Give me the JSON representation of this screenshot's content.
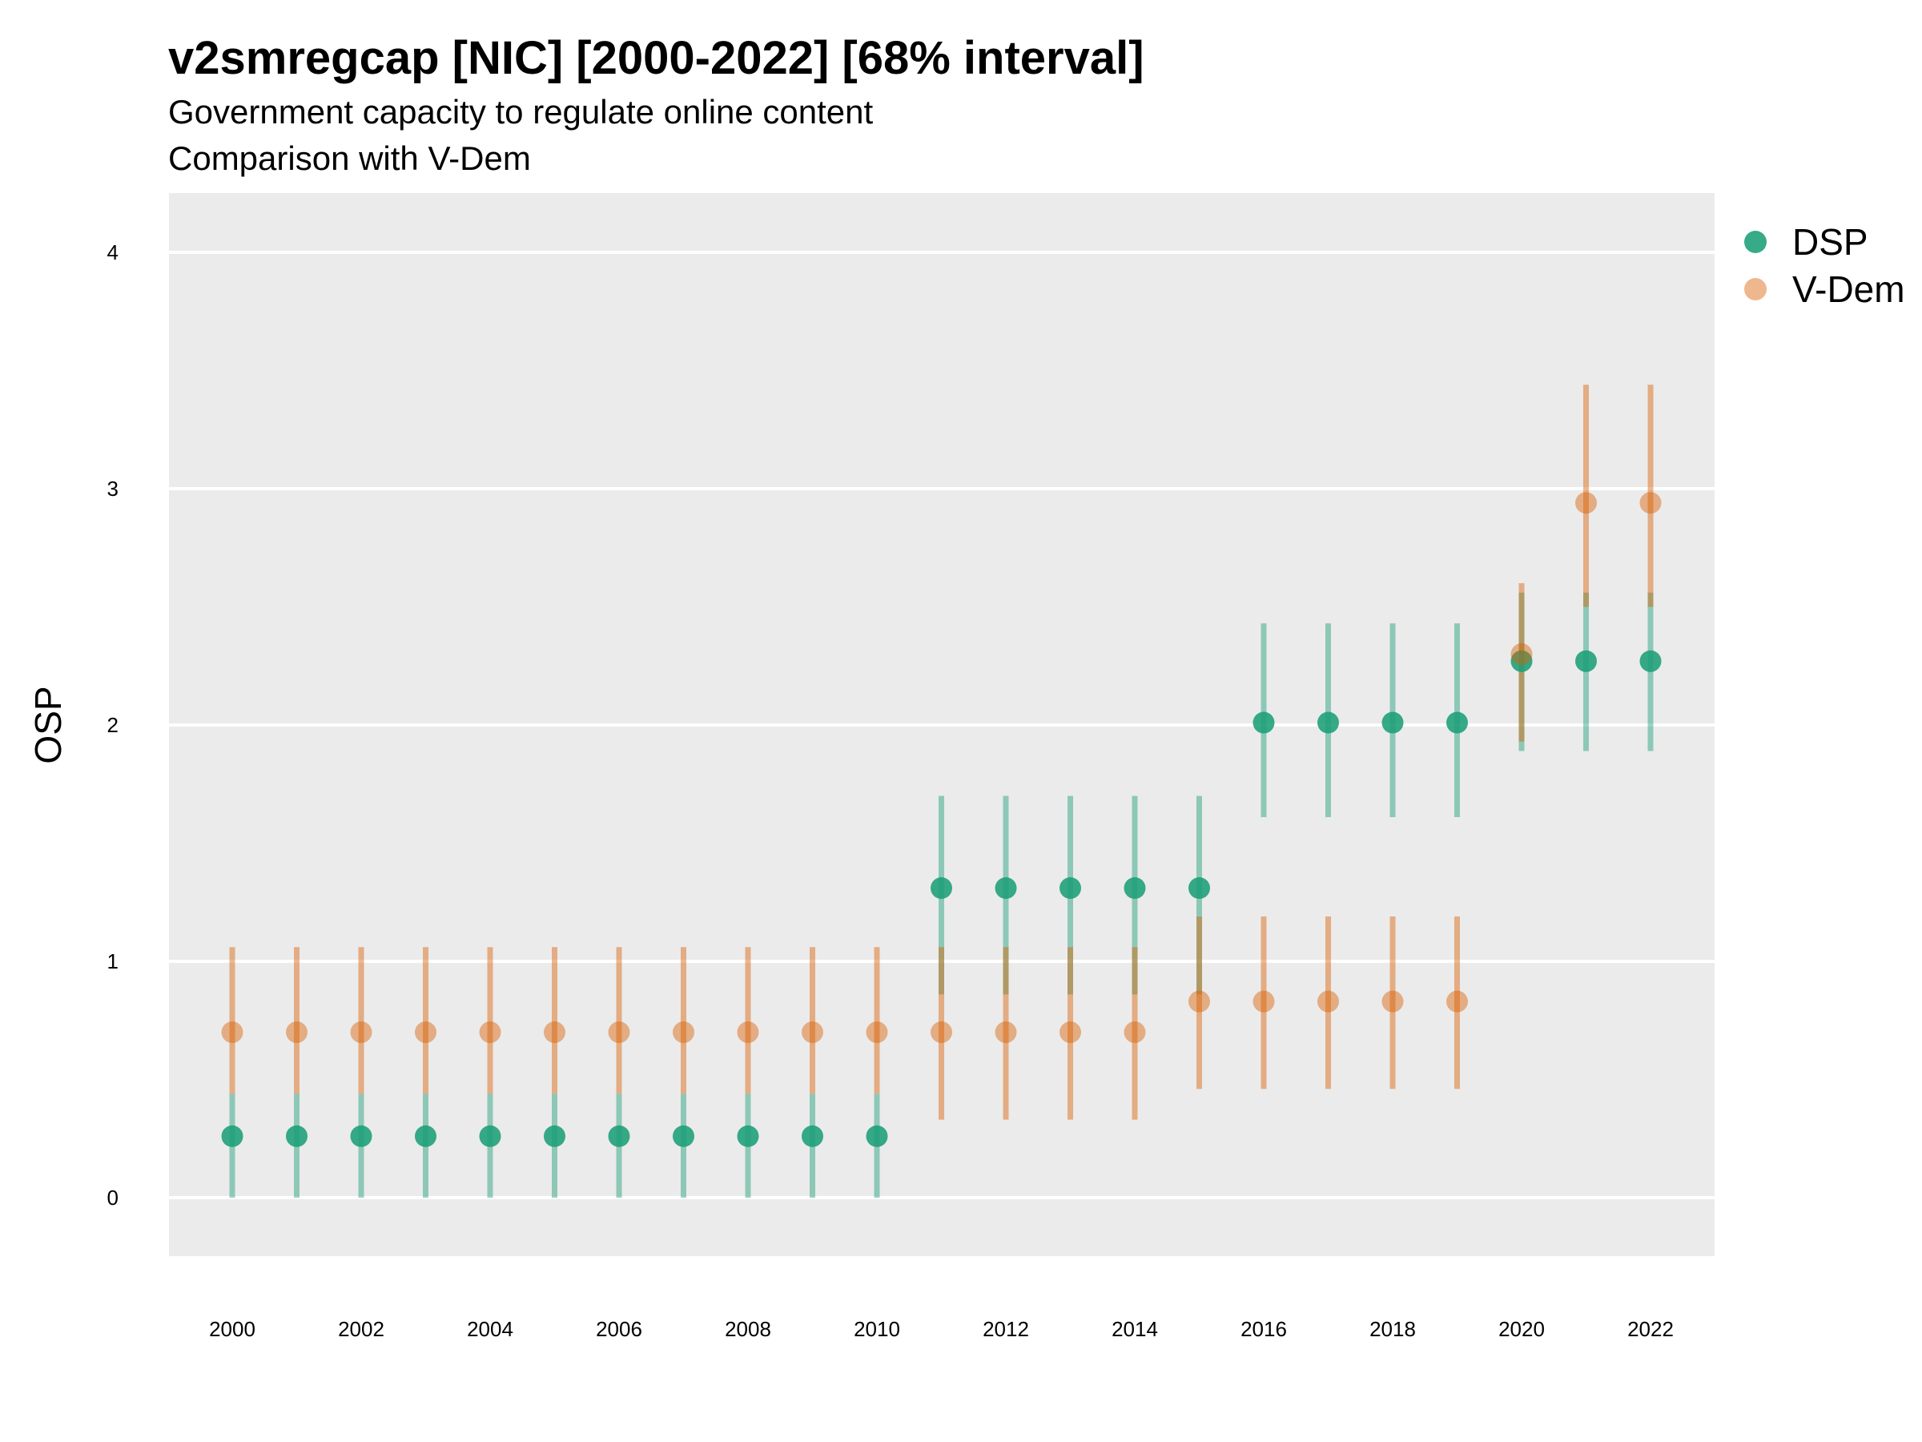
{
  "chart_data": {
    "type": "scatter",
    "title": "v2smregcap [NIC] [2000-2022] [68% interval]",
    "subtitle": [
      "Government capacity to regulate online content",
      "Comparison with V-Dem"
    ],
    "xlabel": "",
    "ylabel": "OSP",
    "x": [
      2000,
      2001,
      2002,
      2003,
      2004,
      2005,
      2006,
      2007,
      2008,
      2009,
      2010,
      2011,
      2012,
      2013,
      2014,
      2015,
      2016,
      2017,
      2018,
      2019,
      2020,
      2021,
      2022
    ],
    "x_ticks": [
      2000,
      2002,
      2004,
      2006,
      2008,
      2010,
      2012,
      2014,
      2016,
      2018,
      2020,
      2022
    ],
    "y_ticks": [
      0,
      1,
      2,
      3,
      4
    ],
    "xlim": [
      1999,
      2023
    ],
    "ylim": [
      -0.25,
      4.25
    ],
    "grid": true,
    "legend_position": "right",
    "series": [
      {
        "name": "DSP",
        "color": "#1b9e77",
        "values": [
          0.26,
          0.26,
          0.26,
          0.26,
          0.26,
          0.26,
          0.26,
          0.26,
          0.26,
          0.26,
          0.26,
          1.31,
          1.31,
          1.31,
          1.31,
          1.31,
          2.01,
          2.01,
          2.01,
          2.01,
          2.27,
          2.27,
          2.27
        ],
        "lower": [
          0.0,
          0.0,
          0.0,
          0.0,
          0.0,
          0.0,
          0.0,
          0.0,
          0.0,
          0.0,
          0.0,
          0.86,
          0.86,
          0.86,
          0.86,
          0.86,
          1.61,
          1.61,
          1.61,
          1.61,
          1.89,
          1.89,
          1.89
        ],
        "upper": [
          0.44,
          0.44,
          0.44,
          0.44,
          0.44,
          0.44,
          0.44,
          0.44,
          0.44,
          0.44,
          0.44,
          1.7,
          1.7,
          1.7,
          1.7,
          1.7,
          2.43,
          2.43,
          2.43,
          2.43,
          2.56,
          2.56,
          2.56
        ]
      },
      {
        "name": "V-Dem",
        "color": "#d95f02",
        "values": [
          0.7,
          0.7,
          0.7,
          0.7,
          0.7,
          0.7,
          0.7,
          0.7,
          0.7,
          0.7,
          0.7,
          0.7,
          0.7,
          0.7,
          0.7,
          0.83,
          0.83,
          0.83,
          0.83,
          0.83,
          2.3,
          2.94,
          2.94
        ],
        "lower": [
          0.44,
          0.44,
          0.44,
          0.44,
          0.44,
          0.44,
          0.44,
          0.44,
          0.44,
          0.44,
          0.44,
          0.33,
          0.33,
          0.33,
          0.33,
          0.46,
          0.46,
          0.46,
          0.46,
          0.46,
          1.93,
          2.5,
          2.5
        ],
        "upper": [
          1.06,
          1.06,
          1.06,
          1.06,
          1.06,
          1.06,
          1.06,
          1.06,
          1.06,
          1.06,
          1.06,
          1.06,
          1.06,
          1.06,
          1.06,
          1.19,
          1.19,
          1.19,
          1.19,
          1.19,
          2.6,
          3.44,
          3.44
        ]
      }
    ]
  }
}
